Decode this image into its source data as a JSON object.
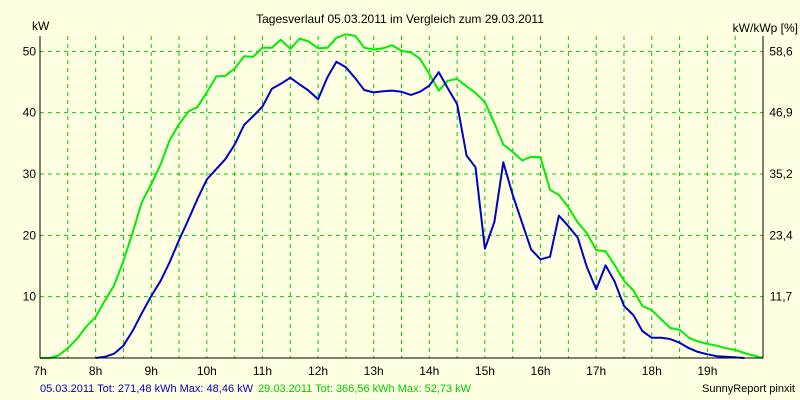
{
  "chart_data": {
    "type": "line",
    "title": "Tagesverlauf 05.03.2011 im Vergleich zum 29.03.2011",
    "ylabel_left": "kW",
    "ylabel_right": "kW/kWp [%]",
    "ylim": [
      0,
      52.5
    ],
    "xlim": [
      7,
      20
    ],
    "grid": true,
    "x_ticks": [
      "7h",
      "8h",
      "9h",
      "10h",
      "11h",
      "12h",
      "13h",
      "14h",
      "15h",
      "16h",
      "17h",
      "18h",
      "19h"
    ],
    "y_ticks_left": [
      "10",
      "20",
      "30",
      "40",
      "50"
    ],
    "y_ticks_right": [
      "11,7",
      "23,4",
      "35,2",
      "46,9",
      "58,6"
    ],
    "series": [
      {
        "name": "05.03.2011",
        "color": "#0000cc",
        "x": [
          8.0,
          8.17,
          8.33,
          8.5,
          8.67,
          8.83,
          9.0,
          9.17,
          9.33,
          9.5,
          9.67,
          9.83,
          10.0,
          10.17,
          10.33,
          10.5,
          10.67,
          10.83,
          11.0,
          11.17,
          11.33,
          11.5,
          11.67,
          11.83,
          12.0,
          12.17,
          12.33,
          12.5,
          12.67,
          12.83,
          13.0,
          13.17,
          13.33,
          13.5,
          13.67,
          13.83,
          14.0,
          14.17,
          14.33,
          14.5,
          14.67,
          14.83,
          15.0,
          15.17,
          15.33,
          15.5,
          15.67,
          15.83,
          16.0,
          16.17,
          16.33,
          16.5,
          16.67,
          16.83,
          17.0,
          17.17,
          17.33,
          17.5,
          17.67,
          17.83,
          18.0,
          18.17,
          18.33,
          18.5,
          18.67,
          18.83,
          19.0,
          19.17,
          19.33,
          19.5,
          19.67
        ],
        "y": [
          0,
          0.2,
          0.7,
          2.0,
          4.5,
          7.3,
          10.1,
          12.6,
          15.6,
          19.2,
          22.6,
          25.9,
          29.1,
          30.8,
          32.4,
          34.8,
          38.0,
          39.4,
          41.0,
          43.9,
          44.7,
          45.7,
          44.6,
          43.6,
          42.2,
          45.8,
          48.3,
          47.4,
          45.6,
          43.7,
          43.3,
          43.5,
          43.6,
          43.4,
          42.9,
          43.4,
          44.4,
          46.6,
          44.0,
          41.4,
          33.0,
          31.1,
          17.8,
          22.2,
          31.9,
          26.6,
          22.0,
          17.7,
          16.1,
          16.5,
          23.2,
          21.5,
          19.6,
          14.9,
          11.2,
          15.1,
          12.5,
          8.5,
          7.0,
          4.4,
          3.3,
          3.3,
          3.1,
          2.5,
          1.6,
          1.0,
          0.6,
          0.3,
          0.2,
          0.1,
          0
        ]
      },
      {
        "name": "29.03.2011",
        "color": "#00ee00",
        "x": [
          7.0,
          7.17,
          7.33,
          7.5,
          7.67,
          7.83,
          8.0,
          8.17,
          8.33,
          8.5,
          8.67,
          8.83,
          9.0,
          9.17,
          9.33,
          9.5,
          9.67,
          9.83,
          10.0,
          10.17,
          10.33,
          10.5,
          10.67,
          10.83,
          11.0,
          11.17,
          11.33,
          11.5,
          11.67,
          11.83,
          12.0,
          12.17,
          12.33,
          12.5,
          12.67,
          12.83,
          13.0,
          13.17,
          13.33,
          13.5,
          13.67,
          13.83,
          14.0,
          14.17,
          14.33,
          14.5,
          14.67,
          14.83,
          15.0,
          15.17,
          15.33,
          15.5,
          15.67,
          15.83,
          16.0,
          16.17,
          16.33,
          16.5,
          16.67,
          16.83,
          17.0,
          17.17,
          17.33,
          17.5,
          17.67,
          17.83,
          18.0,
          18.17,
          18.33,
          18.5,
          18.67,
          18.83,
          19.0,
          19.17,
          19.33,
          19.5,
          19.67,
          19.83,
          20.0
        ],
        "y": [
          0,
          0,
          0.4,
          1.6,
          3.2,
          5.1,
          6.7,
          9.4,
          11.8,
          15.8,
          20.6,
          25.4,
          28.3,
          31.6,
          35.5,
          38.1,
          40.2,
          40.9,
          43.3,
          45.9,
          46.0,
          47.2,
          49.2,
          49.1,
          50.6,
          50.6,
          51.9,
          50.4,
          52.1,
          51.6,
          50.5,
          50.6,
          52.2,
          52.8,
          52.5,
          50.6,
          50.3,
          50.5,
          51.0,
          50.1,
          49.8,
          48.8,
          46.3,
          43.6,
          45.2,
          45.5,
          44.3,
          43.2,
          41.7,
          38.3,
          34.8,
          33.6,
          32.2,
          32.8,
          32.7,
          27.4,
          26.6,
          24.6,
          22.1,
          20.4,
          17.6,
          17.4,
          15.2,
          12.6,
          11.0,
          8.5,
          7.8,
          6.3,
          4.9,
          4.6,
          3.3,
          2.7,
          2.3,
          2.0,
          1.6,
          1.3,
          0.8,
          0.4,
          0
        ]
      }
    ]
  },
  "footer": {
    "series1_text": "05.03.2011 Tot: 271,48 kWh Max: 48,46 kW",
    "series2_text": "29.03.2011 Tot: 366,56 kWh Max: 52,73 kW",
    "credit": "SunnyReport pinxit"
  }
}
